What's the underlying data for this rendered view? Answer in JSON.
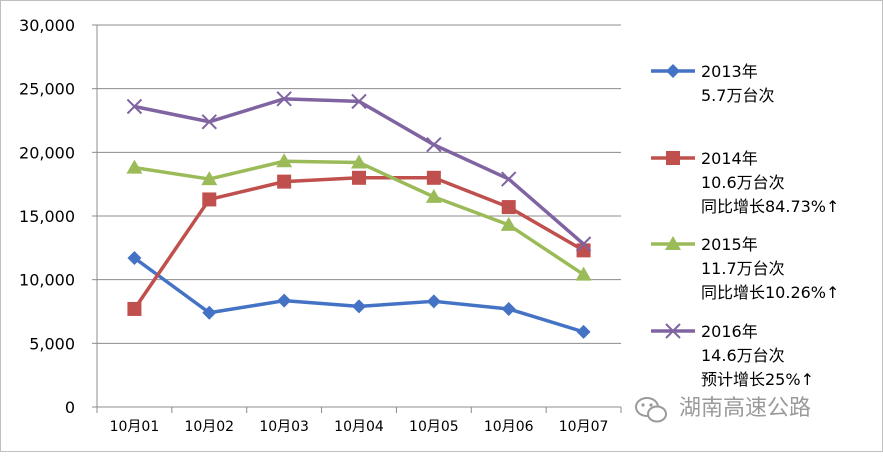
{
  "chart_data": {
    "type": "line",
    "categories": [
      "10月01",
      "10月02",
      "10月03",
      "10月04",
      "10月05",
      "10月06",
      "10月07"
    ],
    "ylim": [
      0,
      30000
    ],
    "yticks": [
      "0",
      "5,000",
      "10,000",
      "15,000",
      "20,000",
      "25,000",
      "30,000"
    ],
    "grid": true,
    "legend_position": "right",
    "series": [
      {
        "name": "2013年",
        "legend_lines": [
          "2013年",
          "5.7万台次"
        ],
        "color": "#4472c4",
        "marker": "diamond",
        "values": [
          11700,
          7400,
          8350,
          7900,
          8300,
          7700,
          5900
        ]
      },
      {
        "name": "2014年",
        "legend_lines": [
          "2014年",
          "10.6万台次",
          "同比增长84.73%↑"
        ],
        "color": "#c0504d",
        "marker": "square",
        "values": [
          7700,
          16300,
          17700,
          18000,
          18000,
          15700,
          12300
        ]
      },
      {
        "name": "2015年",
        "legend_lines": [
          "2015年",
          "11.7万台次",
          "同比增长10.26%↑"
        ],
        "color": "#9bbb59",
        "marker": "triangle",
        "values": [
          18800,
          17900,
          19300,
          19200,
          16500,
          14300,
          10400
        ]
      },
      {
        "name": "2016年",
        "legend_lines": [
          "2016年",
          "14.6万台次",
          "预计增长25%↑"
        ],
        "color": "#8064a2",
        "marker": "x",
        "values": [
          23600,
          22400,
          24200,
          24000,
          20600,
          17900,
          12800
        ]
      }
    ]
  },
  "watermark": {
    "text": "湖南高速公路",
    "icon": "wechat-icon"
  }
}
